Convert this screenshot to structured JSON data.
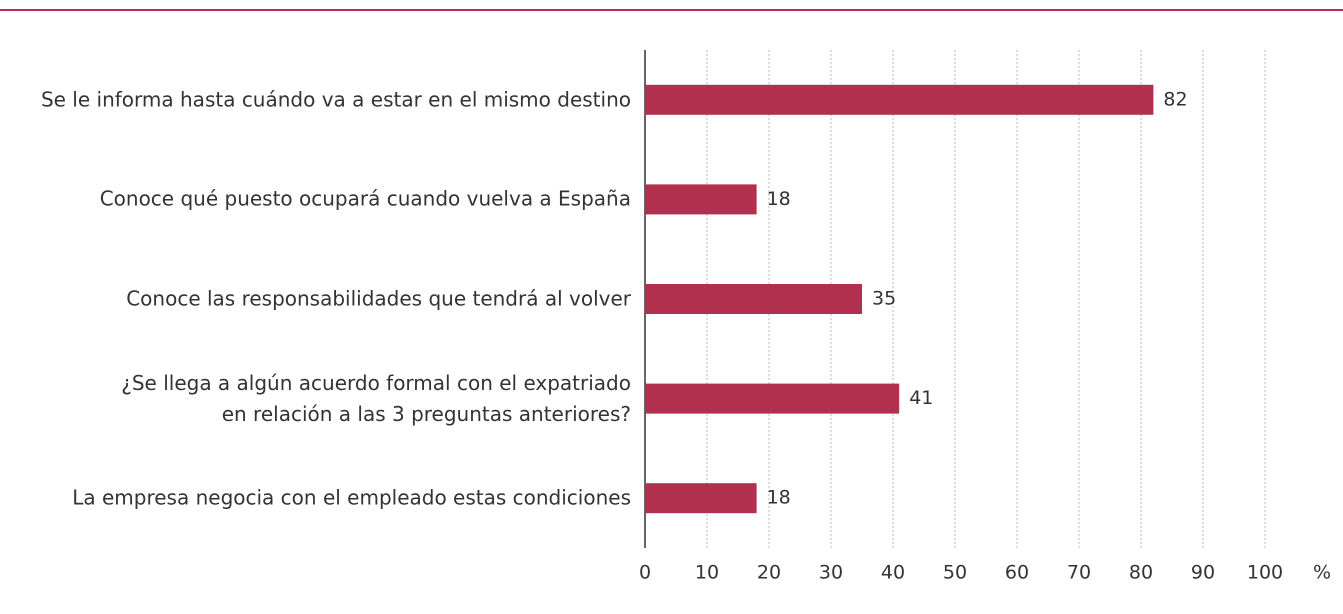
{
  "chart_data": {
    "type": "bar",
    "orientation": "horizontal",
    "categories": [
      "Se le informa hasta cuándo va a estar en el mismo destino",
      "Conoce qué puesto ocupará cuando vuelva a España",
      "Conoce las responsabilidades que tendrá al volver",
      "¿Se llega a algún acuerdo formal con el expatriado\nen relación a las 3 preguntas anteriores?",
      "La empresa negocia con el empleado estas condiciones"
    ],
    "values": [
      82,
      18,
      35,
      41,
      18
    ],
    "color": "#b0304e",
    "x_label": "%",
    "xlim": [
      0,
      100
    ],
    "xticks": [
      0,
      10,
      20,
      30,
      40,
      50,
      60,
      70,
      80,
      90,
      100
    ],
    "grid": true
  }
}
